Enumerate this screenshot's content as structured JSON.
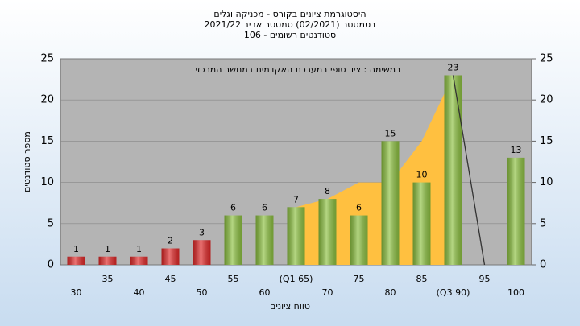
{
  "chart_data": {
    "type": "bar",
    "title": [
      "היסטוגרמת ציונים בקורס - מכניקה וגלים",
      "בסמסטר  (02/2021)  סמסטר אביב 2021/22",
      "סטודנטים רשומים - 106"
    ],
    "annotation": "במשימה : ציון סופי במערכת האקדמית במחשב המרכזי",
    "x_label": "טווח ציונים",
    "y_label": "מספר סטודנטים",
    "categories": [
      "30",
      "35",
      "40",
      "45",
      "50",
      "55",
      "60",
      "(Q1 65)",
      "70",
      "75",
      "80",
      "85",
      "(Q3 90)",
      "95",
      "100"
    ],
    "values": [
      1,
      1,
      1,
      2,
      3,
      6,
      6,
      7,
      8,
      6,
      15,
      10,
      23,
      0,
      13
    ],
    "colors": [
      "#e02828",
      "#e02828",
      "#e02828",
      "#e02828",
      "#e02828",
      "#8cc040",
      "#8cc040",
      "#8cc040",
      "#8cc040",
      "#8cc040",
      "#8cc040",
      "#8cc040",
      "#8cc040",
      "#8cc040",
      "#8cc040"
    ],
    "area": {
      "color": "#ffc040",
      "values": [
        null,
        null,
        null,
        null,
        null,
        null,
        null,
        7,
        8,
        10,
        10,
        15,
        23,
        null,
        null
      ]
    },
    "line": {
      "color": "#333333",
      "values": [
        null,
        null,
        null,
        null,
        null,
        null,
        null,
        null,
        null,
        null,
        null,
        null,
        23,
        0,
        null
      ]
    },
    "ylim": [
      0,
      25
    ],
    "yticks": [
      0,
      5,
      10,
      15,
      20,
      25
    ],
    "y2lim": [
      0,
      25
    ],
    "y2ticks": [
      0,
      5,
      10,
      15,
      20,
      25
    ],
    "grid": true
  }
}
